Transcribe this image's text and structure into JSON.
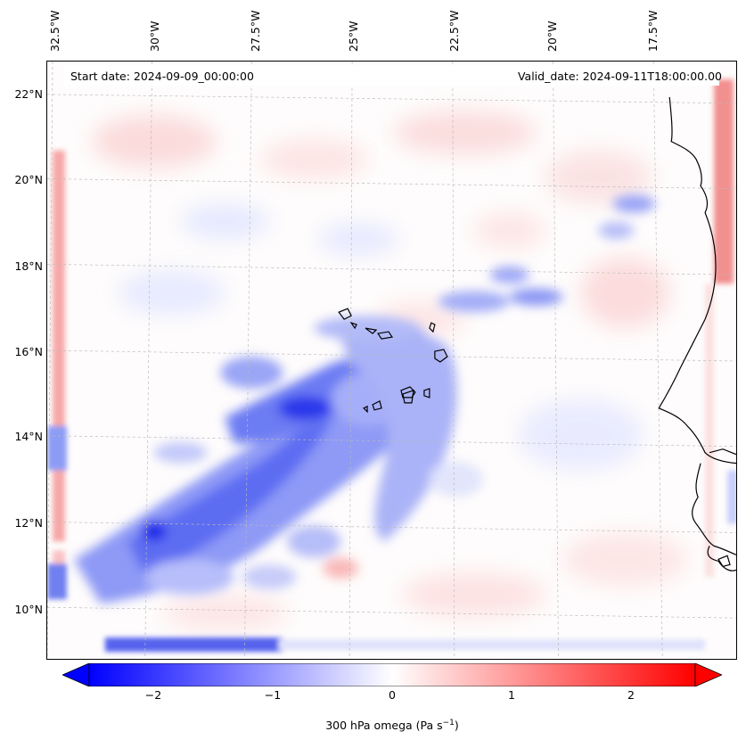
{
  "map": {
    "start_date_label": "Start date: 2024-09-09_00:00:00",
    "valid_date_label": "Valid_date: 2024-09-11T18:00:00.00",
    "longitude_labels": [
      "32.5°W",
      "30°W",
      "27.5°W",
      "25°W",
      "22.5°W",
      "20°W",
      "17.5°W"
    ],
    "latitude_labels": [
      "22°N",
      "20°N",
      "18°N",
      "16°N",
      "14°N",
      "12°N",
      "10°N"
    ],
    "field_variable": "300 hPa omega",
    "colorbar": {
      "label": "300 hPa omega (Pa s",
      "label_exp": "−1",
      "label_close": ")",
      "ticks": [
        "−2",
        "−1",
        "0",
        "1",
        "2"
      ],
      "tick_values": [
        -2,
        -1,
        0,
        1,
        2
      ],
      "range": [
        -2.6,
        2.6
      ],
      "colormap": "bwr",
      "color_low": "#0000ff",
      "color_mid": "#ffffff",
      "color_high": "#ff0000"
    },
    "gridlines": "dashed grey",
    "coastline_color": "#000000"
  }
}
